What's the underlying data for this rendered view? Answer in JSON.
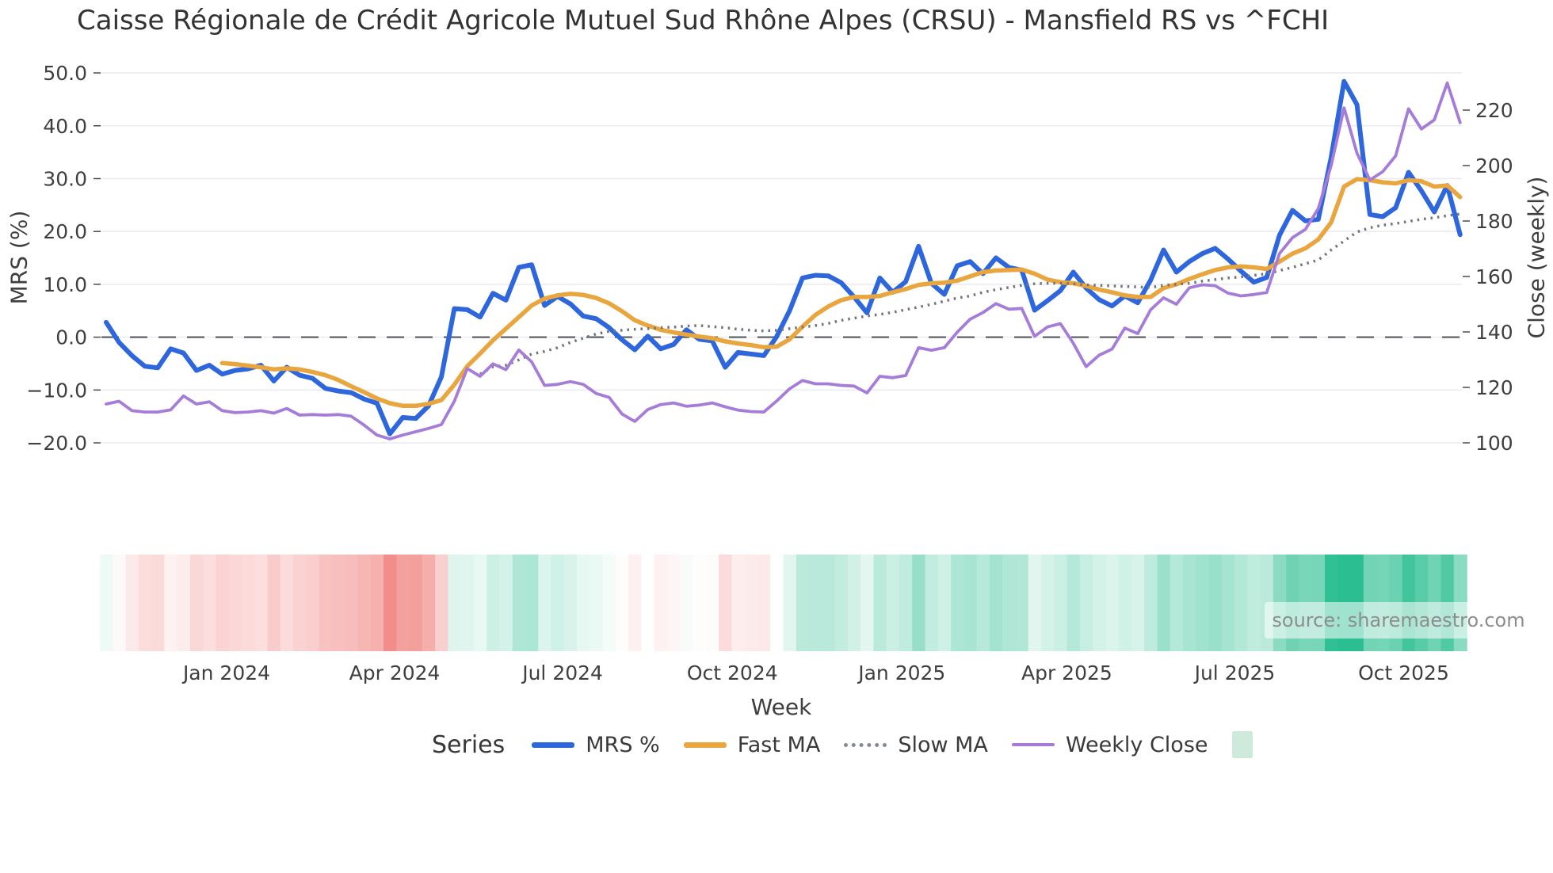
{
  "title": "Caisse Régionale de Crédit Agricole Mutuel Sud Rhône Alpes (CRSU) - Mansfield RS vs ^FCHI",
  "source": "source: sharemaestro.com",
  "axes": {
    "left": {
      "label": "MRS (%)",
      "ticks": [
        50.0,
        40.0,
        30.0,
        20.0,
        10.0,
        0.0,
        -10.0,
        -20.0
      ]
    },
    "right": {
      "label": "Close (weekly)",
      "ticks": [
        220,
        200,
        180,
        160,
        140,
        120,
        100
      ]
    },
    "x": {
      "label": "Week",
      "ticks": [
        {
          "label": "Jan 2024",
          "week": 9.34
        },
        {
          "label": "Apr 2024",
          "week": 22.37
        },
        {
          "label": "Jul 2024",
          "week": 35.4
        },
        {
          "label": "Oct 2024",
          "week": 48.56
        },
        {
          "label": "Jan 2025",
          "week": 61.71
        },
        {
          "label": "Apr 2025",
          "week": 74.5
        },
        {
          "label": "Jul 2025",
          "week": 87.53
        },
        {
          "label": "Oct 2025",
          "week": 100.62
        }
      ]
    }
  },
  "legend": {
    "title": "Series",
    "items": [
      {
        "label": "MRS %",
        "color": "#2e66dc",
        "kind": "line"
      },
      {
        "label": "Fast MA",
        "color": "#e9a63e",
        "kind": "line"
      },
      {
        "label": "Slow MA",
        "color": "#858b93",
        "kind": "dotted"
      },
      {
        "label": "Weekly Close",
        "color": "#a57cd8",
        "kind": "line-thin"
      },
      {
        "label": "",
        "color": "#cdeadd",
        "kind": "square"
      }
    ]
  },
  "chart_data": {
    "type": "line",
    "x_unit": "week_index",
    "n_weeks": 106,
    "grid": true,
    "zero_line": true,
    "left_ylim": [
      -20,
      50
    ],
    "right_ylim": [
      100,
      233
    ],
    "series": [
      {
        "name": "MRS %",
        "axis": "left",
        "color": "#2e66dc",
        "style": "solid",
        "width": 6,
        "start_week": 0,
        "values": [
          2.8,
          -1.0,
          -3.5,
          -5.5,
          -5.8,
          -2.2,
          -3.0,
          -6.3,
          -5.3,
          -7.0,
          -6.3,
          -6.0,
          -5.3,
          -8.3,
          -5.7,
          -7.2,
          -7.8,
          -9.7,
          -10.2,
          -10.5,
          -11.7,
          -12.5,
          -18.3,
          -15.2,
          -15.4,
          -13.0,
          -7.5,
          5.4,
          5.2,
          3.8,
          8.3,
          7.0,
          13.2,
          13.7,
          6.0,
          7.7,
          6.3,
          4.0,
          3.5,
          1.8,
          -0.5,
          -2.4,
          0.2,
          -2.2,
          -1.4,
          1.4,
          -0.4,
          -0.7,
          -5.7,
          -2.9,
          -3.2,
          -3.5,
          0.1,
          5.0,
          11.2,
          11.7,
          11.6,
          10.3,
          7.6,
          4.6,
          11.2,
          8.5,
          10.5,
          17.2,
          10.2,
          8.1,
          13.5,
          14.3,
          12.0,
          15.0,
          13.2,
          12.7,
          5.1,
          6.9,
          8.8,
          12.3,
          9.3,
          7.1,
          5.9,
          7.8,
          6.5,
          10.8,
          16.5,
          12.3,
          14.3,
          15.8,
          16.8,
          14.8,
          12.5,
          10.4,
          11.3,
          19.3,
          24.0,
          22.0,
          22.3,
          34.0,
          48.4,
          44.0,
          23.2,
          22.8,
          24.5,
          31.2,
          27.7,
          23.7,
          28.7,
          19.4
        ]
      },
      {
        "name": "Fast MA",
        "axis": "left",
        "color": "#e9a63e",
        "style": "solid",
        "width": 5.5,
        "start_week": 9,
        "values": [
          -4.9,
          -5.1,
          -5.4,
          -5.7,
          -6.1,
          -5.9,
          -6.1,
          -6.6,
          -7.2,
          -8.1,
          -9.3,
          -10.4,
          -11.6,
          -12.5,
          -13.0,
          -13.0,
          -12.6,
          -11.9,
          -9.0,
          -5.5,
          -3.1,
          -0.6,
          1.6,
          3.8,
          6.0,
          7.3,
          7.9,
          8.2,
          8.0,
          7.4,
          6.4,
          4.9,
          3.2,
          2.2,
          1.4,
          0.9,
          0.5,
          0.1,
          -0.2,
          -0.8,
          -1.2,
          -1.5,
          -1.9,
          -1.8,
          -0.4,
          2.0,
          4.2,
          5.8,
          7.0,
          7.6,
          7.6,
          7.8,
          8.5,
          9.1,
          9.9,
          10.2,
          10.3,
          10.7,
          11.5,
          12.3,
          12.6,
          12.7,
          12.8,
          12.0,
          10.9,
          10.4,
          10.2,
          9.7,
          9.0,
          8.5,
          7.9,
          7.6,
          7.6,
          9.3,
          10.0,
          11.0,
          11.9,
          12.7,
          13.2,
          13.4,
          13.2,
          12.9,
          14.3,
          15.8,
          16.8,
          18.5,
          21.7,
          28.5,
          29.9,
          29.7,
          29.3,
          29.1,
          29.7,
          29.5,
          28.5,
          28.7,
          26.5
        ]
      },
      {
        "name": "Slow MA",
        "axis": "left",
        "color": "#70757c",
        "style": "dotted",
        "width": 3.5,
        "start_week": 29,
        "values": [
          -7.0,
          -5.6,
          -5.3,
          -4.3,
          -3.2,
          -2.7,
          -2.0,
          -1.0,
          -0.2,
          0.6,
          1.1,
          1.3,
          1.5,
          1.6,
          1.8,
          1.9,
          2.1,
          2.2,
          2.0,
          1.8,
          1.5,
          1.3,
          1.2,
          1.3,
          1.6,
          1.9,
          2.2,
          2.6,
          3.2,
          3.6,
          4.0,
          4.3,
          4.7,
          5.2,
          5.7,
          6.2,
          6.8,
          7.4,
          7.8,
          8.5,
          9.0,
          9.4,
          9.8,
          10.1,
          10.2,
          10.2,
          10.1,
          9.9,
          9.8,
          9.7,
          9.6,
          9.5,
          9.4,
          9.8,
          10.0,
          10.2,
          10.6,
          10.9,
          11.2,
          11.4,
          11.7,
          12.0,
          12.6,
          13.2,
          13.9,
          14.6,
          16.5,
          18.2,
          19.9,
          20.7,
          21.2,
          21.5,
          21.9,
          22.3,
          22.6,
          23.0,
          23.3
        ]
      },
      {
        "name": "Weekly Close",
        "axis": "right",
        "color": "#a57cd8",
        "style": "solid",
        "width": 3.8,
        "start_week": 0,
        "values": [
          114.0,
          115.0,
          111.6,
          111.1,
          111.1,
          111.9,
          116.9,
          114.0,
          114.8,
          111.6,
          110.9,
          111.1,
          111.6,
          110.7,
          112.4,
          110.0,
          110.2,
          110.0,
          110.2,
          109.6,
          106.4,
          102.8,
          101.4,
          102.8,
          104.0,
          105.2,
          106.6,
          115.0,
          126.8,
          124.0,
          128.5,
          126.4,
          133.5,
          129.2,
          120.7,
          121.1,
          122.1,
          121.1,
          117.8,
          116.4,
          110.4,
          107.7,
          112.0,
          113.8,
          114.4,
          113.2,
          113.6,
          114.4,
          113.0,
          111.8,
          111.3,
          111.1,
          115.1,
          119.5,
          122.5,
          121.3,
          121.3,
          120.7,
          120.5,
          118.0,
          124.0,
          123.5,
          124.3,
          134.3,
          133.4,
          134.3,
          139.9,
          144.6,
          147.0,
          150.2,
          148.2,
          148.5,
          138.4,
          141.8,
          143.0,
          135.9,
          127.5,
          131.6,
          133.8,
          141.4,
          139.4,
          148.0,
          152.3,
          150.0,
          155.9,
          157.0,
          156.7,
          154.0,
          153.0,
          153.5,
          154.2,
          168.3,
          174.0,
          177.0,
          184.5,
          200.0,
          220.8,
          204.5,
          194.8,
          197.8,
          203.5,
          220.5,
          213.2,
          216.5,
          229.8,
          215.5
        ]
      }
    ],
    "heatmap": {
      "based_on": "MRS %",
      "positive_color": "#2bbe90",
      "negative_color": "#f0827f",
      "positive_saturation_at": 35,
      "negative_saturation_at": 20
    }
  }
}
